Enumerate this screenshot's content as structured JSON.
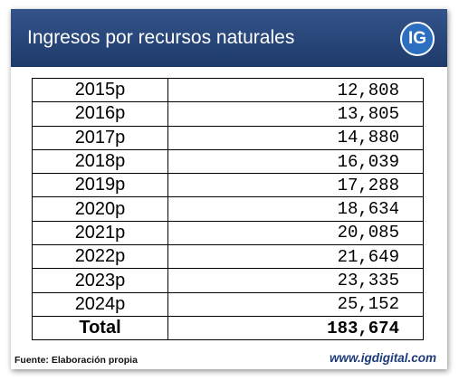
{
  "header": {
    "title": "Ingresos por recursos naturales",
    "logo": "IG"
  },
  "table": {
    "rows": [
      [
        "2015p",
        "12,808"
      ],
      [
        "2016p",
        "13,805"
      ],
      [
        "2017p",
        "14,880"
      ],
      [
        "2018p",
        "16,039"
      ],
      [
        "2019p",
        "17,288"
      ],
      [
        "2020p",
        "18,634"
      ],
      [
        "2021p",
        "20,085"
      ],
      [
        "2022p",
        "21,649"
      ],
      [
        "2023p",
        "23,335"
      ],
      [
        "2024p",
        "25,152"
      ]
    ],
    "total": [
      "Total",
      "183,674"
    ]
  },
  "footer": {
    "source": "Fuente: Elaboración propia",
    "website": "www.igdigital.com"
  }
}
